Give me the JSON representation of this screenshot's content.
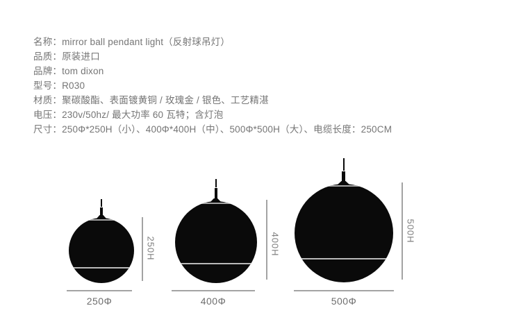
{
  "specs": [
    "名称：mirror ball pendant light（反射球吊灯）",
    "品质：原装进口",
    "品牌：tom dixon",
    "型号：R030",
    "材质：聚碳酸酯、表面镀黄铜 / 玫瑰金 / 银色、工艺精湛",
    "电压：230v/50hz/ 最大功率 60 瓦特；含灯泡",
    "尺寸：250Φ*250H（小）、400Φ*400H（中）、500Φ*500H（大）、电缆长度：250CM"
  ],
  "diagram": {
    "items": [
      {
        "name": "small",
        "h_label": "250H",
        "d_label": "250Φ"
      },
      {
        "name": "medium",
        "h_label": "400H",
        "d_label": "400Φ"
      },
      {
        "name": "large",
        "h_label": "500H",
        "d_label": "500Φ"
      }
    ]
  },
  "colors": {
    "background": "#ffffff",
    "spec_text": "#757575",
    "sphere": "#0a0a0a",
    "sphere_seam": "#b9b9b9",
    "sphere_cap": "#a5a5a5",
    "dimension_line": "#a3a3a3",
    "dimension_label": "#7e7e7e"
  }
}
